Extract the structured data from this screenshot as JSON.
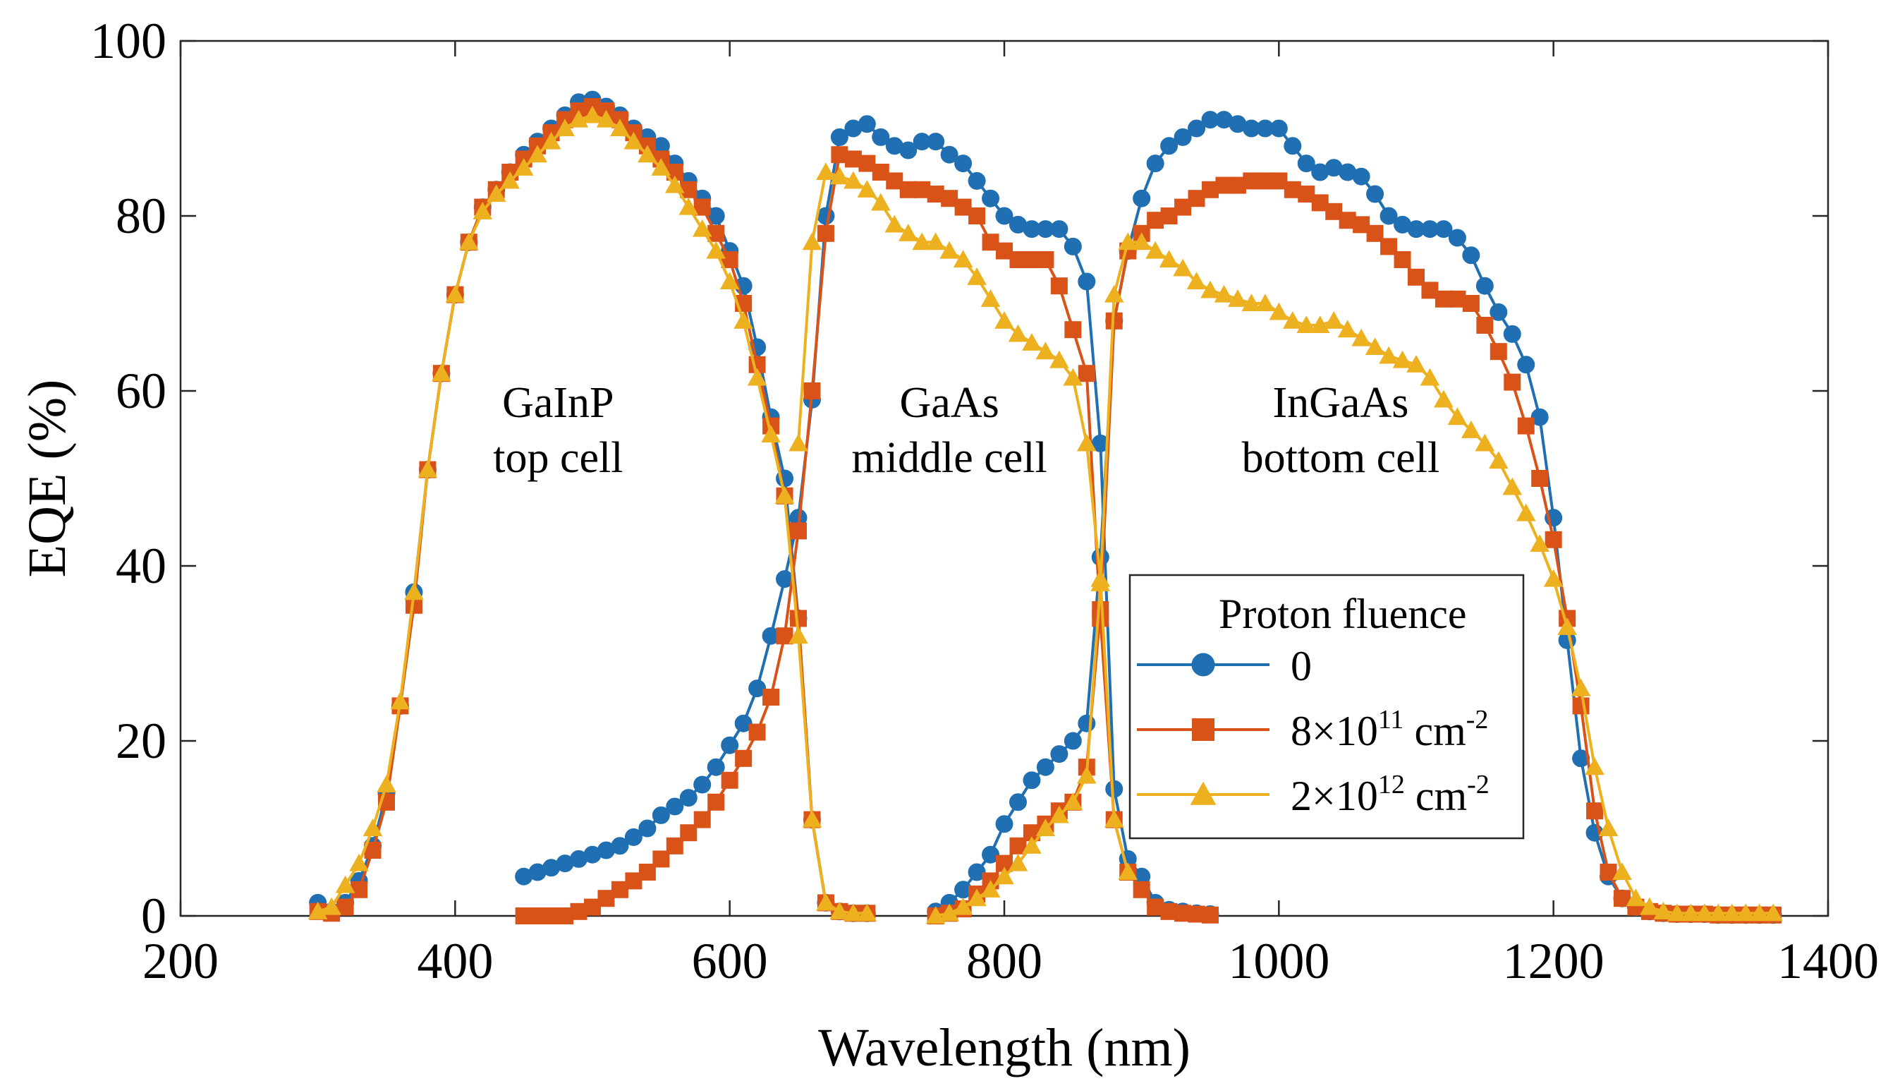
{
  "chart_data": {
    "type": "line",
    "title": "",
    "xlabel": "Wavelength (nm)",
    "ylabel": "EQE (%)",
    "xlim": [
      200,
      1400
    ],
    "ylim": [
      0,
      100
    ],
    "xticks": [
      "200",
      "400",
      "600",
      "800",
      "1000",
      "1200",
      "1400"
    ],
    "yticks": [
      "0",
      "20",
      "40",
      "60",
      "80",
      "100"
    ],
    "grid": false,
    "legend": {
      "title": "Proton fluence",
      "placement": "lower-right-center",
      "entries": [
        {
          "base": "0",
          "sup": "",
          "unit": ""
        },
        {
          "base": "8×10",
          "sup": "11",
          "unit": " cm",
          "unit_sup": "-2"
        },
        {
          "base": "2×10",
          "sup": "12",
          "unit": " cm",
          "unit_sup": "-2"
        }
      ]
    },
    "annotations": [
      {
        "lines": [
          "GaInP",
          "top cell"
        ],
        "x": 475,
        "y": 57
      },
      {
        "lines": [
          "GaAs",
          "middle cell"
        ],
        "x": 760,
        "y": 57
      },
      {
        "lines": [
          "InGaAs",
          "bottom cell"
        ],
        "x": 1045,
        "y": 57
      }
    ],
    "series": [
      {
        "name": "0",
        "color": "#1f6fb2",
        "marker": "circle",
        "segments": [
          {
            "x": [
              300,
              310,
              320,
              330,
              340,
              350,
              360,
              370,
              380,
              390,
              400,
              410,
              420,
              430,
              440,
              450,
              460,
              470,
              480,
              490,
              500,
              510,
              520,
              530,
              540,
              550,
              560,
              570,
              580,
              590,
              600,
              610,
              620,
              630,
              640,
              650,
              660,
              670,
              680,
              690,
              700
            ],
            "y": [
              1.5,
              0.5,
              1.5,
              4,
              8,
              14,
              24,
              37,
              51,
              62,
              71,
              77,
              81,
              83,
              85,
              87,
              88.5,
              90,
              91.5,
              93,
              93.3,
              92.5,
              91.5,
              90,
              89,
              88,
              86,
              84,
              82,
              80,
              76,
              72,
              65,
              57,
              50,
              34,
              11,
              1.5,
              0.5,
              0.3,
              0.3
            ]
          },
          {
            "x": [
              450,
              460,
              470,
              480,
              490,
              500,
              510,
              520,
              530,
              540,
              550,
              560,
              570,
              580,
              590,
              600,
              610,
              620,
              630,
              640,
              650,
              660,
              670,
              680,
              690,
              700,
              710,
              720,
              730,
              740,
              750,
              760,
              770,
              780,
              790,
              800,
              810,
              820,
              830,
              840,
              850,
              860,
              870,
              880,
              890,
              900,
              910,
              920,
              930,
              940,
              950
            ],
            "y": [
              4.5,
              5,
              5.5,
              6,
              6.5,
              7,
              7.5,
              8,
              9,
              10,
              11.5,
              12.5,
              13.5,
              15,
              17,
              19.5,
              22,
              26,
              32,
              38.5,
              45.5,
              59,
              80,
              89,
              90,
              90.5,
              89,
              88,
              87.5,
              88.5,
              88.5,
              87,
              86,
              84,
              82,
              80,
              79,
              78.5,
              78.5,
              78.5,
              76.5,
              72.5,
              54,
              14.5,
              6.5,
              4.5,
              1.5,
              0.7,
              0.5,
              0.3,
              0.2
            ]
          },
          {
            "x": [
              750,
              760,
              770,
              780,
              790,
              800,
              810,
              820,
              830,
              840,
              850,
              860,
              870,
              880,
              890,
              900,
              910,
              920,
              930,
              940,
              950,
              960,
              970,
              980,
              990,
              1000,
              1010,
              1020,
              1030,
              1040,
              1050,
              1060,
              1070,
              1080,
              1090,
              1100,
              1110,
              1120,
              1130,
              1140,
              1150,
              1160,
              1170,
              1180,
              1190,
              1200,
              1210,
              1220,
              1230,
              1240,
              1250,
              1260,
              1270,
              1280,
              1290,
              1300,
              1310,
              1320,
              1330,
              1340,
              1350,
              1360
            ],
            "y": [
              0.5,
              1.5,
              3,
              5,
              7,
              10.5,
              13,
              15.5,
              17,
              18.5,
              20,
              22,
              41,
              68,
              76,
              82,
              86,
              88,
              89,
              90,
              91,
              91,
              90.5,
              90,
              90,
              90,
              88,
              86,
              85,
              85.5,
              85,
              84.5,
              82.5,
              80,
              79,
              78.5,
              78.5,
              78.5,
              77.5,
              75.5,
              72,
              69,
              66.5,
              63,
              57,
              45.5,
              31.5,
              18,
              9.5,
              4.5,
              2,
              1,
              0.5,
              0.3,
              0.2,
              0.2,
              0.2,
              0.1,
              0.1,
              0.1,
              0.1,
              0.1
            ]
          }
        ]
      },
      {
        "name": "8×10^11 cm^-2",
        "color": "#d95319",
        "marker": "square",
        "segments": [
          {
            "x": [
              300,
              310,
              320,
              330,
              340,
              350,
              360,
              370,
              380,
              390,
              400,
              410,
              420,
              430,
              440,
              450,
              460,
              470,
              480,
              490,
              500,
              510,
              520,
              530,
              540,
              550,
              560,
              570,
              580,
              590,
              600,
              610,
              620,
              630,
              640,
              650,
              660,
              670,
              680,
              690,
              700
            ],
            "y": [
              0.5,
              0.3,
              1,
              3,
              7.5,
              13,
              24,
              35.5,
              51,
              62,
              71,
              77,
              81,
              83,
              85,
              86.5,
              88,
              89.5,
              91,
              92,
              92.5,
              92,
              91,
              89.5,
              88,
              86.5,
              85,
              83,
              81,
              78,
              75,
              70,
              63,
              56,
              48,
              34,
              11,
              1.5,
              0.5,
              0.3,
              0.3
            ]
          },
          {
            "x": [
              450,
              460,
              470,
              480,
              490,
              500,
              510,
              520,
              530,
              540,
              550,
              560,
              570,
              580,
              590,
              600,
              610,
              620,
              630,
              640,
              650,
              660,
              670,
              680,
              690,
              700,
              710,
              720,
              730,
              740,
              750,
              760,
              770,
              780,
              790,
              800,
              810,
              820,
              830,
              840,
              850,
              860,
              870,
              880,
              890,
              900,
              910,
              920,
              930,
              940,
              950
            ],
            "y": [
              0,
              0,
              0,
              0,
              0.5,
              1,
              2,
              3,
              4,
              5,
              6.5,
              8,
              9.5,
              11,
              13,
              15.5,
              18,
              21,
              25,
              32,
              44,
              60,
              78,
              87,
              86.5,
              86,
              85,
              84,
              83,
              83,
              82.5,
              82,
              81,
              80,
              77,
              76,
              75,
              75,
              75,
              72,
              67,
              62,
              34,
              11,
              5,
              3,
              1,
              0.5,
              0.3,
              0.2,
              0.1
            ]
          },
          {
            "x": [
              750,
              760,
              770,
              780,
              790,
              800,
              810,
              820,
              830,
              840,
              850,
              860,
              870,
              880,
              890,
              900,
              910,
              920,
              930,
              940,
              950,
              960,
              970,
              980,
              990,
              1000,
              1010,
              1020,
              1030,
              1040,
              1050,
              1060,
              1070,
              1080,
              1090,
              1100,
              1110,
              1120,
              1130,
              1140,
              1150,
              1160,
              1170,
              1180,
              1190,
              1200,
              1210,
              1220,
              1230,
              1240,
              1250,
              1260,
              1270,
              1280,
              1290,
              1300,
              1310,
              1320,
              1330,
              1340,
              1350,
              1360
            ],
            "y": [
              0,
              0.3,
              0.8,
              2.5,
              4,
              6,
              8,
              9.5,
              10.5,
              12,
              13,
              17,
              35,
              68,
              76,
              78,
              79.5,
              80,
              81,
              82,
              83,
              83.5,
              83.5,
              84,
              84,
              84,
              83,
              82.5,
              81.5,
              80.5,
              79.5,
              79,
              78,
              76.5,
              75,
              73,
              71.5,
              70.5,
              70.5,
              70,
              67.5,
              64.5,
              61,
              56,
              50,
              43,
              34,
              24,
              12,
              5,
              2,
              1,
              0.5,
              0.3,
              0.2,
              0.2,
              0.2,
              0.1,
              0.1,
              0.1,
              0.1,
              0.1
            ]
          }
        ]
      },
      {
        "name": "2×10^12 cm^-2",
        "color": "#edb120",
        "marker": "triangle",
        "segments": [
          {
            "x": [
              300,
              310,
              320,
              330,
              340,
              350,
              360,
              370,
              380,
              390,
              400,
              410,
              420,
              430,
              440,
              450,
              460,
              470,
              480,
              490,
              500,
              510,
              520,
              530,
              540,
              550,
              560,
              570,
              580,
              590,
              600,
              610,
              620,
              630,
              640,
              650,
              660,
              670,
              680,
              690,
              700
            ],
            "y": [
              0.5,
              1,
              3.5,
              6,
              10,
              15,
              24.5,
              37,
              51,
              62,
              71,
              77,
              80.5,
              82.5,
              84,
              85.5,
              87,
              88.5,
              90,
              91,
              91.5,
              91,
              90,
              88.5,
              87,
              85.5,
              83.5,
              81,
              78.5,
              76,
              72.5,
              68,
              61.5,
              55,
              48,
              32,
              11,
              1.5,
              0.5,
              0.3,
              0.3
            ]
          },
          {
            "x": [
              650,
              660,
              670,
              680,
              690,
              700,
              710,
              720,
              730,
              740,
              750,
              760,
              770,
              780,
              790,
              800,
              810,
              820,
              830,
              840,
              850,
              860,
              870,
              880,
              890
            ],
            "y": [
              54,
              77,
              85,
              84.5,
              84,
              83,
              81.5,
              79,
              78,
              77,
              77,
              76,
              75,
              73,
              70.5,
              68,
              66.5,
              65.5,
              64.5,
              63.5,
              61.5,
              54,
              38.5,
              11,
              5
            ]
          },
          {
            "x": [
              750,
              760,
              770,
              780,
              790,
              800,
              810,
              820,
              830,
              840,
              850,
              860,
              870,
              880,
              890,
              900,
              910,
              920,
              930,
              940,
              950,
              960,
              970,
              980,
              990,
              1000,
              1010,
              1020,
              1030,
              1040,
              1050,
              1060,
              1070,
              1080,
              1090,
              1100,
              1110,
              1120,
              1130,
              1140,
              1150,
              1160,
              1170,
              1180,
              1190,
              1200,
              1210,
              1220,
              1230,
              1240,
              1250,
              1260,
              1270,
              1280,
              1290,
              1300,
              1310,
              1320,
              1330,
              1340,
              1350,
              1360
            ],
            "y": [
              0,
              0.3,
              1,
              2,
              3,
              4.5,
              6,
              8,
              10,
              11.5,
              13,
              16,
              38,
              71,
              77,
              77,
              76,
              75,
              74,
              72.5,
              71.5,
              71,
              70.5,
              70,
              70,
              69,
              68,
              67.5,
              67.5,
              68,
              67,
              66,
              65,
              64,
              63.5,
              63,
              61.5,
              59,
              57,
              55.5,
              54,
              52,
              49,
              46,
              42.5,
              38.5,
              33,
              26,
              17,
              10,
              5,
              2,
              1,
              0.5,
              0.3,
              0.3,
              0.3,
              0.3,
              0.3,
              0.3,
              0.3,
              0.3
            ]
          }
        ]
      }
    ]
  }
}
